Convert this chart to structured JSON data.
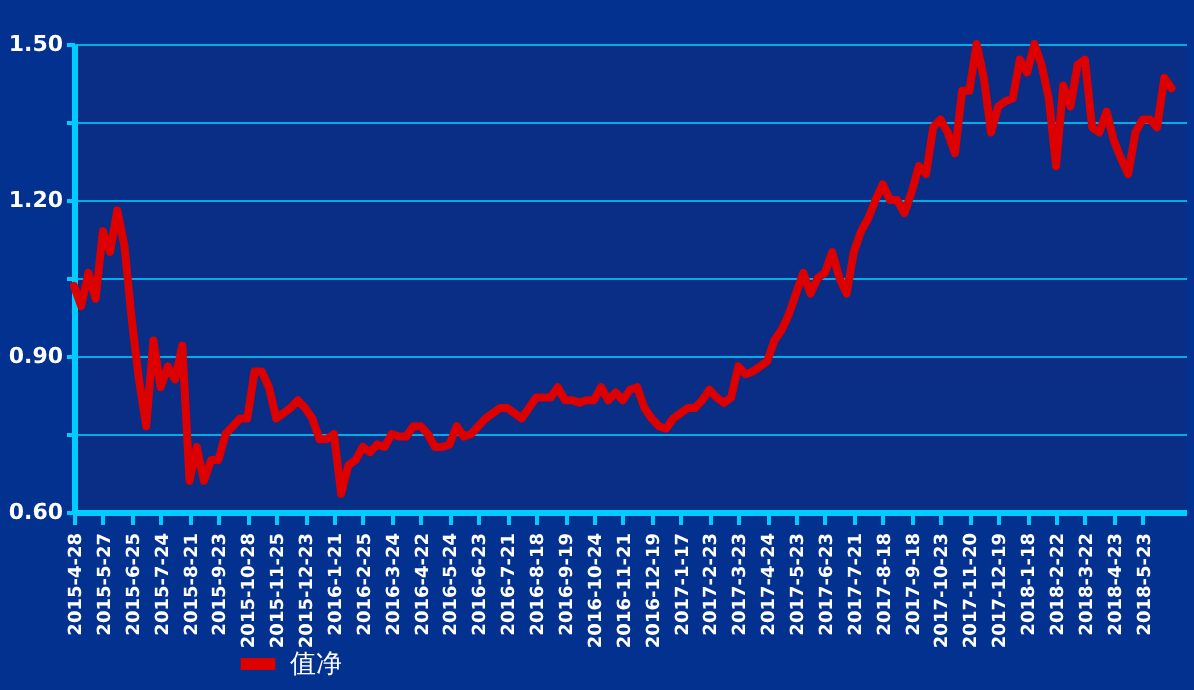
{
  "chart_data": {
    "type": "line",
    "categories": [
      "2015-4-28",
      null,
      null,
      null,
      "2015-5-27",
      null,
      null,
      null,
      "2015-6-25",
      null,
      null,
      null,
      "2015-7-24",
      null,
      null,
      null,
      "2015-8-21",
      null,
      null,
      null,
      "2015-9-23",
      null,
      null,
      null,
      "2015-10-28",
      null,
      null,
      null,
      "2015-11-25",
      null,
      null,
      null,
      "2015-12-23",
      null,
      null,
      null,
      "2016-1-21",
      null,
      null,
      null,
      "2016-2-25",
      null,
      null,
      null,
      "2016-3-24",
      null,
      null,
      null,
      "2016-4-22",
      null,
      null,
      null,
      "2016-5-24",
      null,
      null,
      null,
      "2016-6-23",
      null,
      null,
      null,
      "2016-7-21",
      null,
      null,
      null,
      "2016-8-18",
      null,
      null,
      null,
      "2016-9-19",
      null,
      null,
      null,
      "2016-10-24",
      null,
      null,
      null,
      "2016-11-21",
      null,
      null,
      null,
      "2016-12-19",
      null,
      null,
      null,
      "2017-1-17",
      null,
      null,
      null,
      "2017-2-23",
      null,
      null,
      null,
      "2017-3-23",
      null,
      null,
      null,
      "2017-4-24",
      null,
      null,
      null,
      "2017-5-23",
      null,
      null,
      null,
      "2017-6-23",
      null,
      null,
      null,
      "2017-7-21",
      null,
      null,
      null,
      "2017-8-18",
      null,
      null,
      null,
      "2017-9-18",
      null,
      null,
      null,
      "2017-10-23",
      null,
      null,
      null,
      "2017-11-20",
      null,
      null,
      null,
      "2017-12-19",
      null,
      null,
      null,
      "2018-1-18",
      null,
      null,
      null,
      "2018-2-22",
      null,
      null,
      null,
      "2018-3-22",
      null,
      null,
      null,
      "2018-4-23",
      null,
      null,
      null,
      "2018-5-23",
      null,
      null,
      null,
      null
    ],
    "series": [
      {
        "name": "值净",
        "color": "#dd0000",
        "values": [
          1.035,
          0.996,
          1.06,
          1.01,
          1.14,
          1.1,
          1.18,
          1.11,
          0.97,
          0.855,
          0.765,
          0.93,
          0.84,
          0.88,
          0.855,
          0.92,
          0.66,
          0.725,
          0.66,
          0.7,
          0.7,
          0.75,
          0.765,
          0.78,
          0.78,
          0.87,
          0.87,
          0.84,
          0.78,
          0.79,
          0.8,
          0.815,
          0.8,
          0.78,
          0.74,
          0.74,
          0.75,
          0.635,
          0.69,
          0.7,
          0.725,
          0.715,
          0.73,
          0.725,
          0.75,
          0.745,
          0.745,
          0.765,
          0.765,
          0.75,
          0.725,
          0.725,
          0.73,
          0.765,
          0.745,
          0.75,
          0.765,
          0.78,
          0.79,
          0.8,
          0.8,
          0.79,
          0.78,
          0.8,
          0.82,
          0.82,
          0.82,
          0.84,
          0.815,
          0.815,
          0.81,
          0.815,
          0.815,
          0.84,
          0.815,
          0.83,
          0.815,
          0.835,
          0.84,
          0.8,
          0.78,
          0.765,
          0.76,
          0.78,
          0.79,
          0.8,
          0.8,
          0.815,
          0.835,
          0.82,
          0.81,
          0.82,
          0.88,
          0.865,
          0.87,
          0.88,
          0.89,
          0.93,
          0.95,
          0.98,
          1.02,
          1.06,
          1.02,
          1.05,
          1.06,
          1.1,
          1.05,
          1.02,
          1.1,
          1.14,
          1.165,
          1.2,
          1.23,
          1.2,
          1.2,
          1.175,
          1.215,
          1.265,
          1.25,
          1.34,
          1.355,
          1.33,
          1.29,
          1.41,
          1.41,
          1.5,
          1.435,
          1.33,
          1.38,
          1.39,
          1.395,
          1.47,
          1.445,
          1.5,
          1.46,
          1.395,
          1.265,
          1.42,
          1.38,
          1.46,
          1.47,
          1.34,
          1.33,
          1.37,
          1.315,
          1.28,
          1.25,
          1.33,
          1.355,
          1.355,
          1.34,
          1.435,
          1.415
        ]
      }
    ],
    "ylim": [
      0.6,
      1.5
    ],
    "yticks": [
      {
        "value": 0.6,
        "label": "0.60"
      },
      {
        "value": 0.75,
        "label": null
      },
      {
        "value": 0.9,
        "label": "0.90"
      },
      {
        "value": 1.05,
        "label": null
      },
      {
        "value": 1.2,
        "label": "1.20"
      },
      {
        "value": 1.35,
        "label": null
      },
      {
        "value": 1.5,
        "label": "1.50"
      }
    ],
    "grid": "y",
    "legend": "bottom left",
    "marker": "none",
    "line_style": "solid"
  }
}
